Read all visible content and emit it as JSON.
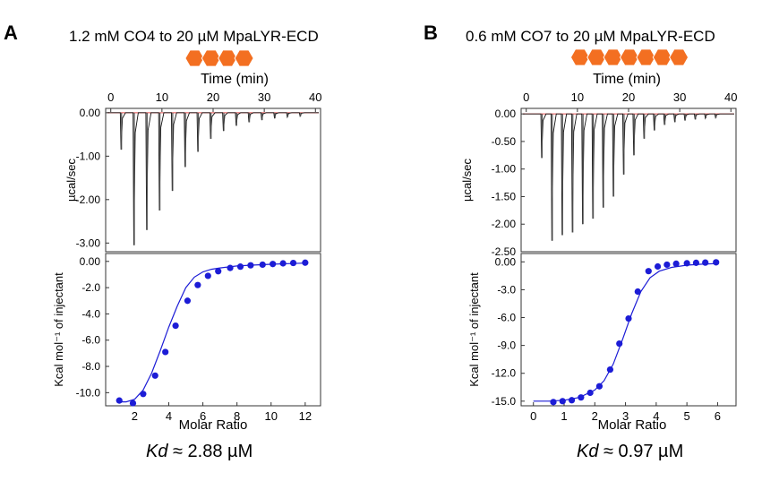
{
  "chart_data": [
    {
      "type": "scatter",
      "panel": "A",
      "title": "1.2 mM CO4 to 20 µM MpaLYR-ECD",
      "hexagon_count": 4,
      "hexagon_color": "#f36f21",
      "top_plot": {
        "xlabel": "Time (min)",
        "ylabel": "µcal/sec",
        "xlim": [
          -1,
          41
        ],
        "ylim": [
          -3.2,
          0.1
        ],
        "x_ticks": [
          "0",
          "10",
          "20",
          "30",
          "40"
        ],
        "y_ticks": [
          "0.00",
          "-1.00",
          "-2.00",
          "-3.00"
        ],
        "baseline_color": "#e24b4b",
        "injection_times": [
          2,
          4.5,
          7,
          9.5,
          12,
          14.5,
          17,
          19.5,
          22,
          24.5,
          27,
          29.5,
          32,
          34.5,
          37
        ],
        "injection_peaks": [
          -0.85,
          -3.05,
          -2.7,
          -2.25,
          -1.8,
          -1.25,
          -0.9,
          -0.6,
          -0.42,
          -0.3,
          -0.22,
          -0.17,
          -0.13,
          -0.1,
          -0.08
        ]
      },
      "bottom_plot": {
        "xlabel": "Molar Ratio",
        "ylabel": "Kcal mol⁻¹ of injectant",
        "xlim": [
          0.3,
          12.9
        ],
        "ylim": [
          -11,
          0.6
        ],
        "x_ticks": [
          "2",
          "4",
          "6",
          "8",
          "10",
          "12"
        ],
        "y_ticks": [
          "0.00",
          "-2.0",
          "-4.0",
          "-6.0",
          "-8.0",
          "-10.0"
        ],
        "point_color": "#1c1cd6",
        "x": [
          1.1,
          1.9,
          2.5,
          3.2,
          3.8,
          4.4,
          5.1,
          5.7,
          6.3,
          6.9,
          7.6,
          8.2,
          8.8,
          9.5,
          10.1,
          10.7,
          11.3,
          12.0
        ],
        "y": [
          -10.6,
          -10.8,
          -10.1,
          -8.7,
          -6.9,
          -4.9,
          -3.0,
          -1.8,
          -1.1,
          -0.75,
          -0.5,
          -0.4,
          -0.3,
          -0.25,
          -0.2,
          -0.15,
          -0.12,
          -0.1
        ],
        "fit_x": [
          1.0,
          1.5,
          2.0,
          2.5,
          3.0,
          3.5,
          4.0,
          4.5,
          5.0,
          5.5,
          6.0,
          6.5,
          7.0,
          8.0,
          9.0,
          10.0,
          11.0,
          12.0
        ],
        "fit_y": [
          -10.7,
          -10.7,
          -10.5,
          -9.8,
          -8.5,
          -6.8,
          -5.0,
          -3.4,
          -2.0,
          -1.2,
          -0.8,
          -0.6,
          -0.5,
          -0.35,
          -0.28,
          -0.22,
          -0.17,
          -0.13
        ]
      },
      "kd_label": "Kd",
      "kd_value": " ≈ 2.88 µM"
    },
    {
      "type": "scatter",
      "panel": "B",
      "title": "0.6 mM CO7 to 20 µM MpaLYR-ECD",
      "hexagon_count": 7,
      "hexagon_color": "#f36f21",
      "top_plot": {
        "xlabel": "Time (min)",
        "ylabel": "µcal/sec",
        "xlim": [
          -1,
          41
        ],
        "ylim": [
          -2.5,
          0.1
        ],
        "x_ticks": [
          "0",
          "10",
          "20",
          "30",
          "40"
        ],
        "y_ticks": [
          "0.00",
          "-0.50",
          "-1.00",
          "-1.50",
          "-2.00",
          "-2.50"
        ],
        "baseline_color": "#e24b4b",
        "injection_times": [
          3,
          5,
          7,
          9,
          11,
          13,
          15,
          17,
          19,
          21,
          23,
          25,
          27,
          29,
          31,
          33,
          35,
          37
        ],
        "injection_peaks": [
          -0.8,
          -2.3,
          -2.2,
          -2.15,
          -2.0,
          -1.9,
          -1.7,
          -1.5,
          -1.1,
          -0.75,
          -0.45,
          -0.3,
          -0.2,
          -0.15,
          -0.12,
          -0.1,
          -0.08,
          -0.07
        ]
      },
      "bottom_plot": {
        "xlabel": "Molar Ratio",
        "ylabel": "Kcal mol⁻¹ of injectant",
        "xlim": [
          -0.4,
          6.6
        ],
        "ylim": [
          -15.5,
          0.9
        ],
        "x_ticks": [
          "0",
          "1",
          "2",
          "3",
          "4",
          "5",
          "6"
        ],
        "y_ticks": [
          "0.00",
          "-3.0",
          "-6.0",
          "-9.0",
          "-12.0",
          "-15.0"
        ],
        "point_color": "#1c1cd6",
        "x": [
          0.65,
          0.95,
          1.25,
          1.55,
          1.85,
          2.15,
          2.5,
          2.8,
          3.1,
          3.4,
          3.75,
          4.05,
          4.35,
          4.65,
          5.0,
          5.3,
          5.6,
          5.95
        ],
        "y": [
          -15.1,
          -15.0,
          -14.9,
          -14.6,
          -14.1,
          -13.4,
          -11.6,
          -8.8,
          -6.1,
          -3.2,
          -1.0,
          -0.5,
          -0.3,
          -0.2,
          -0.15,
          -0.1,
          -0.08,
          -0.05
        ],
        "fit_x": [
          0.0,
          0.5,
          1.0,
          1.5,
          2.0,
          2.3,
          2.6,
          2.9,
          3.2,
          3.5,
          3.8,
          4.1,
          4.5,
          5.0,
          5.5,
          6.0
        ],
        "fit_y": [
          -15.0,
          -15.0,
          -14.9,
          -14.6,
          -13.8,
          -12.8,
          -11.0,
          -8.4,
          -5.6,
          -3.2,
          -1.7,
          -1.0,
          -0.6,
          -0.35,
          -0.25,
          -0.18
        ]
      },
      "kd_label": "Kd",
      "kd_value": " ≈ 0.97 µM"
    }
  ]
}
